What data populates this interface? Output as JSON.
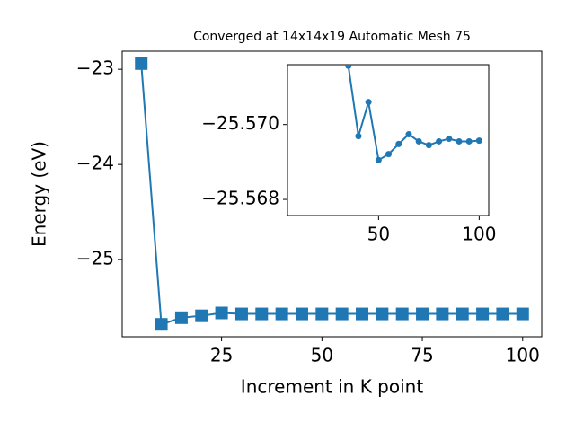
{
  "chart_data": [
    {
      "type": "line",
      "title": "Converged at 14x14x19 Automatic Mesh 75",
      "x_label": "Increment in K point",
      "y_label": "Energy (eV)",
      "x": [
        5,
        10,
        15,
        20,
        25,
        30,
        35,
        40,
        45,
        50,
        55,
        60,
        65,
        70,
        75,
        80,
        85,
        90,
        95,
        100
      ],
      "values": [
        -22.94,
        -25.68,
        -25.61,
        -25.59,
        -25.56,
        -25.57,
        -25.57,
        -25.57,
        -25.57,
        -25.57,
        -25.57,
        -25.57,
        -25.57,
        -25.57,
        -25.57,
        -25.57,
        -25.57,
        -25.57,
        -25.57,
        -25.57
      ],
      "color": "#1f77b4",
      "marker": "square",
      "xlim": [
        0.25,
        104.75
      ],
      "ylim": [
        -25.81,
        -22.81
      ],
      "xticks": [
        25,
        50,
        75,
        100
      ],
      "yticks": [
        {
          "value": -23,
          "label": "−23"
        },
        {
          "value": -24,
          "label": "−24"
        },
        {
          "value": -25,
          "label": "−25"
        }
      ]
    },
    {
      "type": "line",
      "x": [
        35,
        40,
        45,
        50,
        55,
        60,
        65,
        70,
        75,
        80,
        85,
        90,
        95,
        100
      ],
      "values": [
        -25.57157,
        -25.56969,
        -25.5706,
        -25.56905,
        -25.56921,
        -25.56948,
        -25.56974,
        -25.56955,
        -25.56945,
        -25.56955,
        -25.56962,
        -25.56955,
        -25.56955,
        -25.56957
      ],
      "color": "#1f77b4",
      "marker": "circle",
      "xlim": [
        4.75,
        104.75
      ],
      "ylim": [
        -25.56757,
        -25.5716
      ],
      "xticks": [
        50,
        100
      ],
      "yticks": [
        {
          "value": -25.57,
          "label": "−25.570"
        },
        {
          "value": -25.568,
          "label": "−25.568"
        }
      ]
    }
  ]
}
